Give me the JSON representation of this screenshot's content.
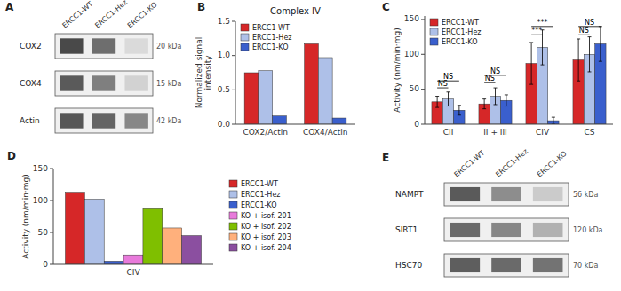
{
  "chart_data": [
    {
      "type": "blot",
      "panel_label": "A",
      "categories": [
        "ERCC1-WT",
        "ERCC1-Hez",
        "ERCC1-KO"
      ],
      "series": [
        {
          "name": "COX2",
          "annotation": "20 kDa",
          "values": [
            0.88,
            0.7,
            0.18
          ]
        },
        {
          "name": "COX4",
          "annotation": "15 kDa",
          "values": [
            0.8,
            0.62,
            0.22
          ]
        },
        {
          "name": "Actin",
          "annotation": "42 kDa",
          "values": [
            0.82,
            0.75,
            0.58
          ]
        }
      ]
    },
    {
      "type": "bar",
      "panel_label": "B",
      "title": "Complex IV",
      "ylabel": "Normalized signal\nintensity",
      "categories": [
        "COX2/Actin",
        "COX4/Actin"
      ],
      "series": [
        {
          "name": "ERCC1-WT",
          "color": "#d62728",
          "values": [
            0.75,
            1.17
          ]
        },
        {
          "name": "ERCC1-Hez",
          "color": "#aec0e8",
          "values": [
            0.78,
            0.97
          ]
        },
        {
          "name": "ERCC1-KO",
          "color": "#3a5fcd",
          "values": [
            0.12,
            0.09
          ]
        }
      ],
      "ylim": [
        0,
        1.5
      ],
      "yticks": [
        {
          "value": 0,
          "label": "0.0"
        },
        0.5,
        {
          "value": 1,
          "label": "1.0"
        },
        1.5
      ],
      "grid": false,
      "legend": "upper left"
    },
    {
      "type": "bar",
      "panel_label": "C",
      "ylabel": "Activity (nm/min·mg)",
      "categories": [
        "CII",
        "II + III",
        "CIV",
        "CS"
      ],
      "series": [
        {
          "name": "ERCC1-WT",
          "color": "#d62728",
          "values": [
            32,
            29,
            87,
            92
          ],
          "errors": [
            8,
            7,
            30,
            30
          ]
        },
        {
          "name": "ERCC1-Hez",
          "color": "#aec0e8",
          "values": [
            36,
            40,
            110,
            100
          ],
          "errors": [
            10,
            12,
            25,
            25
          ]
        },
        {
          "name": "ERCC1-KO",
          "color": "#3a5fcd",
          "values": [
            20,
            34,
            5,
            115
          ],
          "errors": [
            7,
            8,
            5,
            25
          ]
        }
      ],
      "ylim": [
        0,
        155
      ],
      "yticks": [
        0,
        50,
        100,
        150
      ],
      "grid": false,
      "legend": "upper left",
      "annotations": [
        {
          "text": "NS",
          "category": "CII",
          "from": "ERCC1-WT",
          "to": "ERCC1-Hez",
          "y": 52
        },
        {
          "text": "NS",
          "category": "CII",
          "from": "ERCC1-WT",
          "to": "ERCC1-KO",
          "y": 62
        },
        {
          "text": "NS",
          "category": "II + III",
          "from": "ERCC1-WT",
          "to": "ERCC1-Hez",
          "y": 60
        },
        {
          "text": "NS",
          "category": "II + III",
          "from": "ERCC1-WT",
          "to": "ERCC1-KO",
          "y": 70
        },
        {
          "text": "***",
          "category": "CIV",
          "from": "ERCC1-WT",
          "to": "ERCC1-Hez",
          "y": 128
        },
        {
          "text": "***",
          "category": "CIV",
          "from": "ERCC1-WT",
          "to": "ERCC1-KO",
          "y": 140
        },
        {
          "text": "NS",
          "category": "CS",
          "from": "ERCC1-WT",
          "to": "ERCC1-Hez",
          "y": 128
        },
        {
          "text": "NS",
          "category": "CS",
          "from": "ERCC1-WT",
          "to": "ERCC1-KO",
          "y": 140
        }
      ]
    },
    {
      "type": "bar",
      "panel_label": "D",
      "ylabel": "Activity (nm/min·mg)",
      "categories": [
        "CIV"
      ],
      "series": [
        {
          "name": "ERCC1-WT",
          "color": "#d62728",
          "values": [
            113
          ]
        },
        {
          "name": "ERCC1-Hez",
          "color": "#aec0e8",
          "values": [
            102
          ]
        },
        {
          "name": "ERCC1-KO",
          "color": "#3a5fcd",
          "values": [
            5
          ]
        },
        {
          "name": "KO + isof. 201",
          "color": "#e87adb",
          "values": [
            15
          ]
        },
        {
          "name": "KO + isof. 202",
          "color": "#7fbf00",
          "values": [
            87
          ]
        },
        {
          "name": "KO + isof. 203",
          "color": "#ffb07c",
          "values": [
            57
          ]
        },
        {
          "name": "KO + isof. 204",
          "color": "#8b4fa0",
          "values": [
            45
          ]
        }
      ],
      "ylim": [
        0,
        150
      ],
      "yticks": [
        0,
        50,
        100,
        150
      ],
      "grid": false,
      "legend": "right"
    },
    {
      "type": "blot",
      "panel_label": "E",
      "categories": [
        "ERCC1-WT",
        "ERCC1-Hez",
        "ERCC1-KO"
      ],
      "series": [
        {
          "name": "NAMPT",
          "annotation": "56 kDa",
          "values": [
            0.8,
            0.55,
            0.25
          ]
        },
        {
          "name": "SIRT1",
          "annotation": "120 kDa",
          "values": [
            0.72,
            0.58,
            0.38
          ]
        },
        {
          "name": "HSC70",
          "annotation": "70 kDa",
          "values": [
            0.78,
            0.72,
            0.68
          ]
        }
      ]
    }
  ]
}
